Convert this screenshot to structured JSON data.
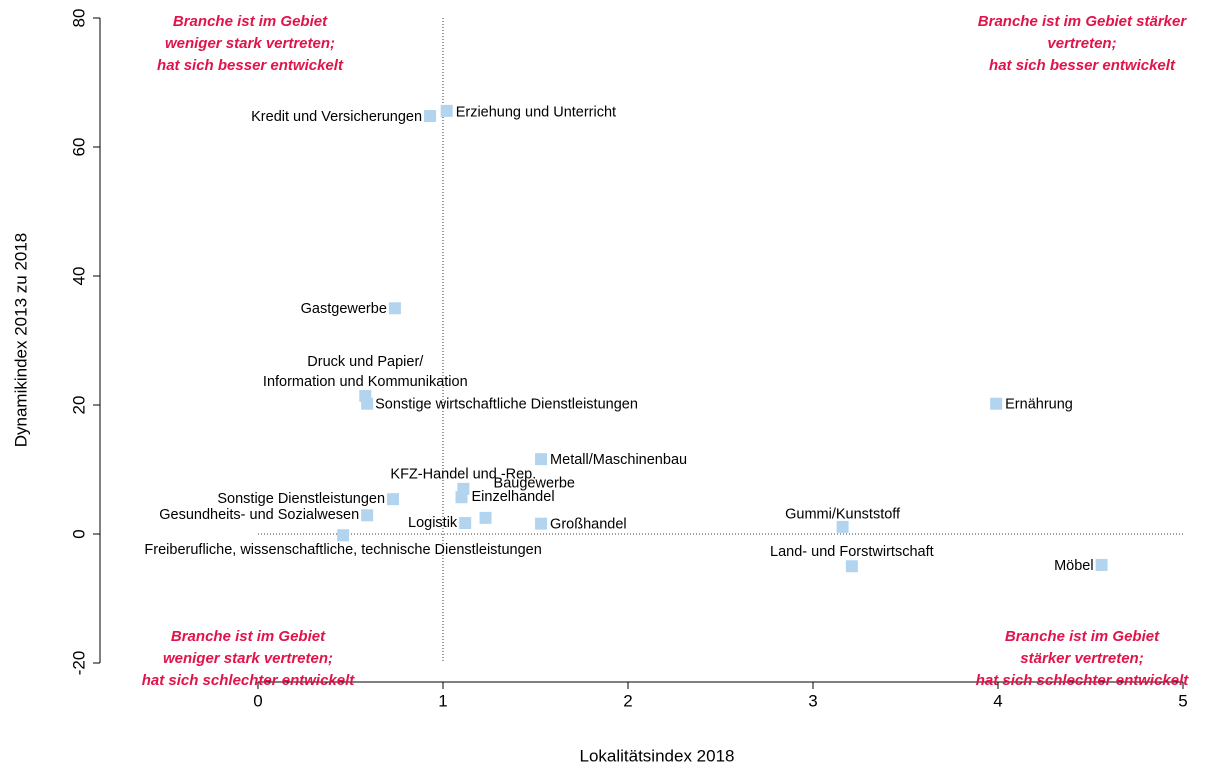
{
  "chart_data": {
    "type": "scatter",
    "xlabel": "Lokalitätsindex 2018",
    "ylabel": "Dynamikindex 2013 zu 2018",
    "labels": [
      "Kredit und Versicherungen",
      "Erziehung und Unterricht",
      "Gastgewerbe",
      [
        "Druck und Papier/",
        "Information und Kommunikation"
      ],
      "Sonstige wirtschaftliche Dienstleistungen",
      "Ernährung",
      "Metall/Maschinenbau",
      "KFZ-Handel und -Rep.",
      "Einzelhandel",
      "Sonstige Dienstleistungen",
      "Gesundheits- und Sozialwesen",
      "Baugewerbe",
      "Logistik",
      "Großhandel",
      "Gummi/Kunststoff",
      "Freiberufliche, wissenschaftliche, technische Dienstleistungen",
      "Land- und Forstwirtschaft",
      "Möbel"
    ],
    "x": [
      0.93,
      1.02,
      0.74,
      0.58,
      0.59,
      3.99,
      1.53,
      1.11,
      1.1,
      0.73,
      0.59,
      1.23,
      1.12,
      1.53,
      3.16,
      0.46,
      3.21,
      4.56
    ],
    "y": [
      64.8,
      65.6,
      35.0,
      21.4,
      20.2,
      20.2,
      11.6,
      7.0,
      5.7,
      5.4,
      2.9,
      2.5,
      1.7,
      1.6,
      1.1,
      -0.2,
      -5.0,
      -4.8
    ],
    "color": "#b3d4ee",
    "xlim": [
      0,
      5
    ],
    "xticks": [
      0,
      1,
      2,
      3,
      4,
      5
    ],
    "ylim": [
      -20,
      80
    ],
    "yticks": [
      -20,
      0,
      20,
      40,
      60,
      80
    ],
    "vlines": [
      1
    ],
    "hlines": [
      0
    ],
    "annotations": [
      [
        "Branche ist im Gebiet",
        "weniger stark vertreten;",
        "hat sich besser entwickelt"
      ],
      [
        "Branche ist im Gebiet stärker",
        "vertreten;",
        "hat sich besser entwickelt"
      ],
      [
        "Branche ist im Gebiet",
        "weniger stark vertreten;",
        "hat sich schlechter entwickelt"
      ],
      [
        "Branche ist im Gebiet",
        "stärker vertreten;",
        "hat sich schlechter entwickelt"
      ]
    ]
  }
}
